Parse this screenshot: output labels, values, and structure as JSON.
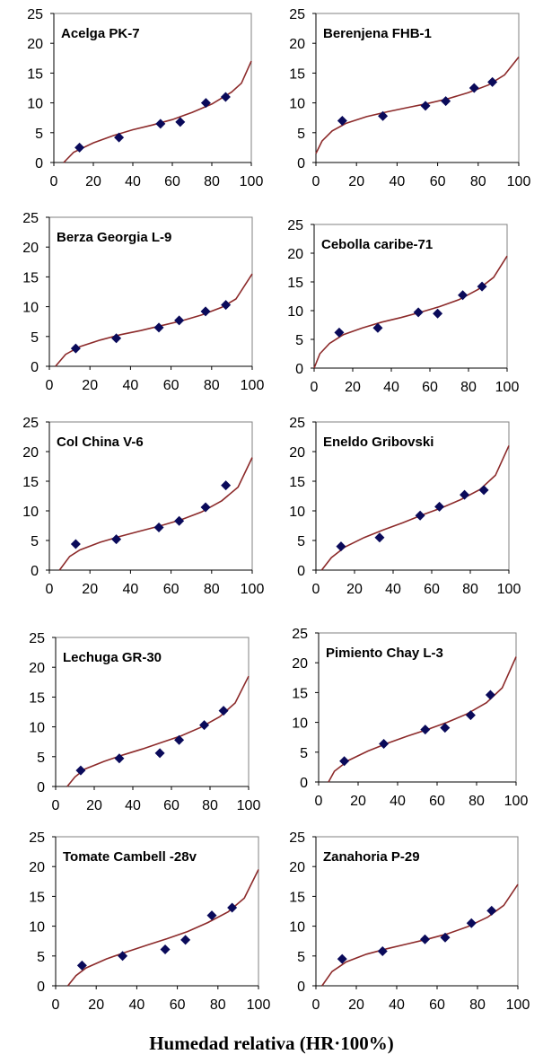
{
  "chart_data": [
    {
      "type": "scatter",
      "title": "Acelga PK-7",
      "xlim": [
        0,
        100
      ],
      "ylim": [
        0,
        25
      ],
      "xticks": [
        0,
        20,
        40,
        60,
        80,
        100
      ],
      "yticks": [
        0,
        5,
        10,
        15,
        20,
        25
      ],
      "series": [
        {
          "type": "scatter",
          "x": [
            13,
            33,
            54,
            64,
            77,
            87
          ],
          "y": [
            2.5,
            4.2,
            6.5,
            6.8,
            10.0,
            11.0
          ]
        },
        {
          "type": "line",
          "x": [
            5,
            10,
            20,
            30,
            40,
            50,
            60,
            70,
            80,
            90,
            95,
            100
          ],
          "y": [
            0,
            1.7,
            3.3,
            4.5,
            5.5,
            6.3,
            7.2,
            8.4,
            9.8,
            11.8,
            13.3,
            17.0
          ]
        }
      ]
    },
    {
      "type": "scatter",
      "title": "Berenjena FHB-1",
      "xlim": [
        0,
        100
      ],
      "ylim": [
        0,
        25
      ],
      "xticks": [
        0,
        20,
        40,
        60,
        80,
        100
      ],
      "yticks": [
        0,
        5,
        10,
        15,
        20,
        25
      ],
      "series": [
        {
          "type": "scatter",
          "x": [
            13,
            33,
            54,
            64,
            78,
            87
          ],
          "y": [
            7.0,
            7.8,
            9.5,
            10.3,
            12.5,
            13.5
          ]
        },
        {
          "type": "line",
          "x": [
            0,
            3,
            8,
            15,
            25,
            35,
            45,
            55,
            65,
            75,
            85,
            93,
            100
          ],
          "y": [
            1.5,
            3.6,
            5.3,
            6.6,
            7.7,
            8.5,
            9.2,
            9.9,
            10.7,
            11.7,
            13.0,
            14.7,
            17.7
          ]
        }
      ]
    },
    {
      "type": "scatter",
      "title": "Berza Georgia L-9",
      "xlim": [
        0,
        100
      ],
      "ylim": [
        0,
        25
      ],
      "xticks": [
        0,
        20,
        40,
        60,
        80,
        100
      ],
      "yticks": [
        0,
        5,
        10,
        15,
        20,
        25
      ],
      "series": [
        {
          "type": "scatter",
          "x": [
            13,
            33,
            54,
            64,
            77,
            87
          ],
          "y": [
            3.0,
            4.7,
            6.5,
            7.7,
            9.2,
            10.3
          ]
        },
        {
          "type": "line",
          "x": [
            3,
            8,
            15,
            25,
            35,
            45,
            55,
            65,
            75,
            85,
            92,
            100
          ],
          "y": [
            0,
            2.0,
            3.3,
            4.4,
            5.3,
            6.0,
            6.8,
            7.6,
            8.6,
            9.9,
            11.3,
            15.5
          ]
        }
      ]
    },
    {
      "type": "scatter",
      "title": "Cebolla caribe-71",
      "xlim": [
        0,
        100
      ],
      "ylim": [
        0,
        25
      ],
      "xticks": [
        0,
        20,
        40,
        60,
        80,
        100
      ],
      "yticks": [
        0,
        5,
        10,
        15,
        20,
        25
      ],
      "series": [
        {
          "type": "scatter",
          "x": [
            13,
            33,
            54,
            64,
            77,
            87
          ],
          "y": [
            6.2,
            7.0,
            9.7,
            9.5,
            12.7,
            14.2
          ]
        },
        {
          "type": "line",
          "x": [
            0,
            3,
            8,
            15,
            25,
            35,
            45,
            55,
            65,
            75,
            85,
            93,
            100
          ],
          "y": [
            0,
            2.5,
            4.3,
            5.8,
            7.0,
            8.0,
            8.8,
            9.7,
            10.7,
            11.9,
            13.7,
            15.8,
            19.5
          ]
        }
      ]
    },
    {
      "type": "scatter",
      "title": "Col China V-6",
      "xlim": [
        0,
        100
      ],
      "ylim": [
        0,
        25
      ],
      "xticks": [
        0,
        20,
        40,
        60,
        80,
        100
      ],
      "yticks": [
        0,
        5,
        10,
        15,
        20,
        25
      ],
      "series": [
        {
          "type": "scatter",
          "x": [
            13,
            33,
            54,
            64,
            77,
            87
          ],
          "y": [
            4.4,
            5.2,
            7.2,
            8.3,
            10.6,
            14.3
          ]
        },
        {
          "type": "line",
          "x": [
            5,
            10,
            15,
            25,
            35,
            45,
            55,
            65,
            75,
            85,
            93,
            100
          ],
          "y": [
            0,
            2.3,
            3.4,
            4.7,
            5.7,
            6.6,
            7.5,
            8.5,
            9.8,
            11.7,
            14.0,
            19.0
          ]
        }
      ]
    },
    {
      "type": "scatter",
      "title": "Eneldo Gribovski",
      "xlim": [
        0,
        100
      ],
      "ylim": [
        0,
        25
      ],
      "xticks": [
        0,
        20,
        40,
        60,
        80,
        100
      ],
      "yticks": [
        0,
        5,
        10,
        15,
        20,
        25
      ],
      "series": [
        {
          "type": "scatter",
          "x": [
            13,
            33,
            54,
            64,
            77,
            87
          ],
          "y": [
            4.0,
            5.5,
            9.2,
            10.7,
            12.7,
            13.5
          ]
        },
        {
          "type": "line",
          "x": [
            3,
            8,
            15,
            25,
            35,
            45,
            55,
            65,
            75,
            85,
            93,
            100
          ],
          "y": [
            0,
            2.1,
            3.9,
            5.5,
            6.8,
            8.0,
            9.3,
            10.5,
            11.9,
            13.6,
            16.0,
            21.0
          ]
        }
      ]
    },
    {
      "type": "scatter",
      "title": "Lechuga GR-30",
      "xlim": [
        0,
        100
      ],
      "ylim": [
        0,
        25
      ],
      "xticks": [
        0,
        20,
        40,
        60,
        80,
        100
      ],
      "yticks": [
        0,
        5,
        10,
        15,
        20,
        25
      ],
      "series": [
        {
          "type": "scatter",
          "x": [
            13,
            33,
            54,
            64,
            77,
            87
          ],
          "y": [
            2.7,
            4.7,
            5.6,
            7.8,
            10.3,
            12.7
          ]
        },
        {
          "type": "line",
          "x": [
            6,
            10,
            15,
            25,
            35,
            45,
            55,
            65,
            75,
            85,
            93,
            100
          ],
          "y": [
            0,
            1.6,
            2.9,
            4.2,
            5.3,
            6.3,
            7.4,
            8.5,
            9.9,
            11.7,
            14.0,
            18.5
          ]
        }
      ]
    },
    {
      "type": "scatter",
      "title": "Pimiento Chay L-3",
      "xlim": [
        0,
        100
      ],
      "ylim": [
        0,
        25
      ],
      "xticks": [
        0,
        20,
        40,
        60,
        80,
        100
      ],
      "yticks": [
        0,
        5,
        10,
        15,
        20,
        25
      ],
      "series": [
        {
          "type": "scatter",
          "x": [
            13,
            33,
            54,
            64,
            77,
            87
          ],
          "y": [
            3.5,
            6.4,
            8.8,
            9.1,
            11.2,
            14.6
          ]
        },
        {
          "type": "line",
          "x": [
            5,
            8,
            15,
            25,
            35,
            45,
            55,
            65,
            75,
            85,
            93,
            100
          ],
          "y": [
            0,
            1.8,
            3.6,
            5.2,
            6.5,
            7.7,
            8.8,
            10.0,
            11.4,
            13.3,
            15.8,
            21.0
          ]
        }
      ]
    },
    {
      "type": "scatter",
      "title": "Tomate Cambell -28v",
      "xlim": [
        0,
        100
      ],
      "ylim": [
        0,
        25
      ],
      "xticks": [
        0,
        20,
        40,
        60,
        80,
        100
      ],
      "yticks": [
        0,
        5,
        10,
        15,
        20,
        25
      ],
      "series": [
        {
          "type": "scatter",
          "x": [
            13,
            33,
            54,
            64,
            77,
            87
          ],
          "y": [
            3.4,
            5.0,
            6.1,
            7.7,
            11.8,
            13.1
          ]
        },
        {
          "type": "line",
          "x": [
            6,
            10,
            15,
            25,
            35,
            45,
            55,
            65,
            75,
            85,
            93,
            100
          ],
          "y": [
            0,
            1.7,
            3.0,
            4.5,
            5.7,
            6.8,
            7.9,
            9.1,
            10.6,
            12.4,
            14.7,
            19.5
          ]
        }
      ]
    },
    {
      "type": "scatter",
      "title": "Zanahoria P-29",
      "xlim": [
        0,
        100
      ],
      "ylim": [
        0,
        25
      ],
      "xticks": [
        0,
        20,
        40,
        60,
        80,
        100
      ],
      "yticks": [
        0,
        5,
        10,
        15,
        20,
        25
      ],
      "series": [
        {
          "type": "scatter",
          "x": [
            13,
            33,
            54,
            64,
            77,
            87
          ],
          "y": [
            4.5,
            5.8,
            7.8,
            8.1,
            10.5,
            12.6
          ]
        },
        {
          "type": "line",
          "x": [
            3,
            8,
            15,
            25,
            35,
            45,
            55,
            65,
            75,
            85,
            93,
            100
          ],
          "y": [
            0,
            2.4,
            4.0,
            5.3,
            6.2,
            7.0,
            7.8,
            8.7,
            9.9,
            11.5,
            13.5,
            17.0
          ]
        }
      ]
    }
  ],
  "figure": {
    "xlabel": "Humedad relativa (HR·100%)",
    "colors": {
      "points": "#0a0a5a",
      "curve": "#8c2a2a",
      "axis": "#000000"
    }
  }
}
